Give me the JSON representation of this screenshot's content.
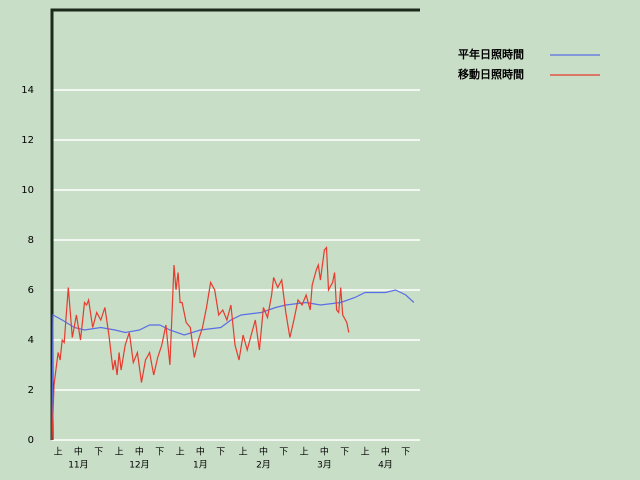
{
  "chart_data": {
    "type": "line",
    "xlim": [
      0,
      181
    ],
    "ylim": [
      0,
      17.2
    ],
    "yticks": [
      0,
      2,
      4,
      6,
      8,
      10,
      12,
      14
    ],
    "grid": true,
    "xticks": [
      {
        "value": 3,
        "label": "上"
      },
      {
        "value": 13,
        "label": "中"
      },
      {
        "value": 23,
        "label": "下"
      },
      {
        "value": 33,
        "label": "上"
      },
      {
        "value": 43,
        "label": "中"
      },
      {
        "value": 53,
        "label": "下"
      },
      {
        "value": 63,
        "label": "上"
      },
      {
        "value": 73,
        "label": "中"
      },
      {
        "value": 83,
        "label": "下"
      },
      {
        "value": 94,
        "label": "上"
      },
      {
        "value": 104,
        "label": "中"
      },
      {
        "value": 114,
        "label": "下"
      },
      {
        "value": 124,
        "label": "上"
      },
      {
        "value": 134,
        "label": "中"
      },
      {
        "value": 144,
        "label": "下"
      },
      {
        "value": 154,
        "label": "上"
      },
      {
        "value": 164,
        "label": "中"
      },
      {
        "value": 174,
        "label": "下"
      }
    ],
    "months": [
      {
        "value": 13,
        "label": "11月"
      },
      {
        "value": 43,
        "label": "12月"
      },
      {
        "value": 73,
        "label": "1月"
      },
      {
        "value": 104,
        "label": "2月"
      },
      {
        "value": 134,
        "label": "3月"
      },
      {
        "value": 164,
        "label": "4月"
      }
    ],
    "series": [
      {
        "name": "平年日照時間",
        "color": "#5a6ee6",
        "x": [
          0,
          0.5,
          5,
          11,
          16,
          24,
          31,
          36,
          43,
          48,
          53,
          58,
          65,
          73,
          83,
          88,
          93,
          103,
          110,
          115,
          125,
          132,
          142,
          149,
          154,
          164,
          169,
          174,
          178
        ],
        "values": [
          0,
          5.0,
          4.8,
          4.5,
          4.4,
          4.5,
          4.4,
          4.3,
          4.4,
          4.6,
          4.6,
          4.4,
          4.2,
          4.4,
          4.5,
          4.8,
          5.0,
          5.1,
          5.3,
          5.4,
          5.5,
          5.4,
          5.5,
          5.7,
          5.9,
          5.9,
          6.0,
          5.8,
          5.5
        ]
      },
      {
        "name": "移動日照時間",
        "color": "#e83a2e",
        "x": [
          0,
          1,
          3,
          4,
          5,
          6,
          8,
          10,
          12,
          14,
          16,
          17,
          18,
          20,
          22,
          24,
          26,
          28,
          30,
          31,
          32,
          33,
          34,
          36,
          38,
          40,
          42,
          44,
          46,
          48,
          50,
          52,
          54,
          56,
          58,
          60,
          61,
          62,
          63,
          64,
          66,
          68,
          70,
          72,
          74,
          76,
          78,
          80,
          82,
          84,
          86,
          88,
          90,
          92,
          94,
          96,
          98,
          100,
          102,
          104,
          106,
          108,
          109,
          111,
          113,
          115,
          117,
          119,
          121,
          123,
          125,
          127,
          128,
          130,
          131,
          132,
          134,
          135,
          136,
          138,
          139,
          140,
          141,
          142,
          143,
          145,
          146
        ],
        "values": [
          0,
          2.2,
          3.5,
          3.2,
          4.0,
          3.9,
          6.1,
          4.1,
          5.0,
          4.0,
          5.5,
          5.4,
          5.6,
          4.5,
          5.1,
          4.8,
          5.3,
          4.2,
          2.8,
          3.2,
          2.6,
          3.5,
          2.8,
          3.8,
          4.3,
          3.1,
          3.5,
          2.3,
          3.2,
          3.5,
          2.6,
          3.3,
          3.8,
          4.6,
          3.0,
          7.0,
          6.0,
          6.7,
          5.5,
          5.5,
          4.7,
          4.5,
          3.3,
          4.0,
          4.5,
          5.3,
          6.3,
          6.0,
          5.0,
          5.2,
          4.8,
          5.4,
          3.8,
          3.2,
          4.2,
          3.6,
          4.2,
          4.8,
          3.6,
          5.3,
          4.9,
          5.8,
          6.5,
          6.1,
          6.4,
          5.1,
          4.1,
          4.8,
          5.6,
          5.4,
          5.8,
          5.2,
          6.2,
          6.8,
          7.0,
          6.4,
          7.6,
          7.7,
          6.0,
          6.3,
          6.7,
          5.2,
          5.1,
          6.1,
          5.0,
          4.7,
          4.3
        ]
      }
    ]
  }
}
